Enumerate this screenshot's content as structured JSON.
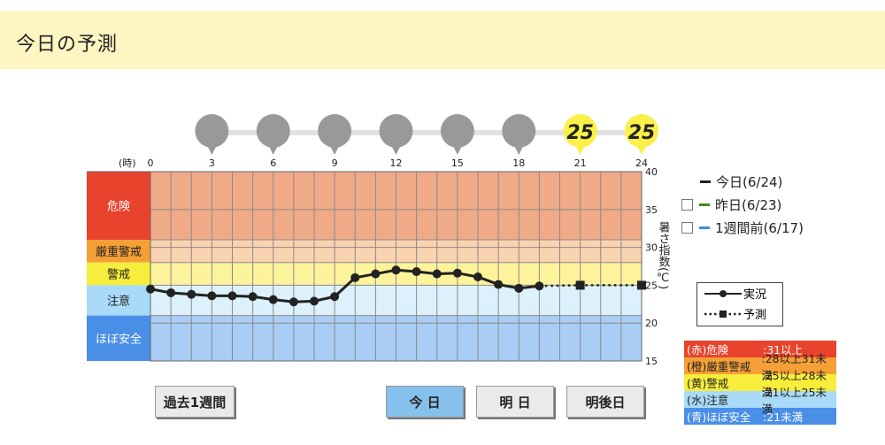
{
  "page": {
    "title": "今日の予測"
  },
  "chart_data": {
    "type": "line",
    "hour_unit": "(時)",
    "x_ticks": [
      0,
      3,
      6,
      9,
      12,
      15,
      18,
      21,
      24
    ],
    "xlim": [
      0,
      24
    ],
    "ylim": [
      15,
      40
    ],
    "y_ticks": [
      15,
      20,
      25,
      30,
      35,
      40
    ],
    "ylabel": "暑さ指数(℃)",
    "series": [
      {
        "name": "実況",
        "style": "solid",
        "color": "#222222",
        "x": [
          0,
          1,
          2,
          3,
          4,
          5,
          6,
          7,
          8,
          9,
          10,
          11,
          12,
          13,
          14,
          15,
          16,
          17,
          18,
          19
        ],
        "values": [
          24.5,
          24.0,
          23.8,
          23.6,
          23.6,
          23.5,
          23.1,
          22.8,
          22.9,
          23.5,
          26.0,
          26.5,
          27.0,
          26.8,
          26.5,
          26.6,
          26.1,
          25.1,
          24.6,
          24.9
        ]
      },
      {
        "name": "予測",
        "style": "dotted",
        "color": "#222222",
        "x": [
          19,
          21,
          24
        ],
        "values": [
          24.9,
          25,
          25
        ]
      }
    ],
    "forecast_markers": [
      {
        "hour": 3,
        "value": null
      },
      {
        "hour": 6,
        "value": null
      },
      {
        "hour": 9,
        "value": null
      },
      {
        "hour": 12,
        "value": null
      },
      {
        "hour": 15,
        "value": null
      },
      {
        "hour": 18,
        "value": null
      },
      {
        "hour": 21,
        "value": "25"
      },
      {
        "hour": 24,
        "value": "25"
      }
    ],
    "bands": [
      {
        "label": "危険",
        "from": 31,
        "to": 40,
        "color": "#f0aa88",
        "label_bg": "#e8432c",
        "label_color": "#ffffff"
      },
      {
        "label": "厳重警戒",
        "from": 28,
        "to": 31,
        "color": "#fad3b0",
        "label_bg": "#f5a037",
        "label_color": "#222222"
      },
      {
        "label": "警戒",
        "from": 25,
        "to": 28,
        "color": "#fdf39a",
        "label_bg": "#f7ed3c",
        "label_color": "#222222"
      },
      {
        "label": "注意",
        "from": 21,
        "to": 25,
        "color": "#dcf1fb",
        "label_bg": "#a9daf7",
        "label_color": "#222222"
      },
      {
        "label": "ほぼ安全",
        "from": 15,
        "to": 21,
        "color": "#aacdf5",
        "label_bg": "#4a8fe7",
        "label_color": "#ffffff"
      }
    ]
  },
  "legend": {
    "today": "今日(6/24)",
    "yesterday": "昨日(6/23)",
    "week_ago": "1週間前(6/17)",
    "colors": {
      "today": "#222222",
      "yesterday": "#3e8a1e",
      "week_ago": "#3d8fe0"
    }
  },
  "line_legend": {
    "actual": "実況",
    "forecast": "予測"
  },
  "scale_legend": [
    {
      "name": "(赤)危険",
      "range": ":31以上",
      "bg": "#e8432c",
      "color": "#ffffff"
    },
    {
      "name": "(橙)厳重警戒",
      "range": ":28以上31未満",
      "bg": "#f5a037",
      "color": "#222222"
    },
    {
      "name": "(黄)警戒",
      "range": ":25以上28未満",
      "bg": "#f7ed3c",
      "color": "#222222"
    },
    {
      "name": "(水)注意",
      "range": ":21以上25未満",
      "bg": "#a9daf7",
      "color": "#222222"
    },
    {
      "name": "(青)ほぼ安全",
      "range": ":21未満",
      "bg": "#4a8fe7",
      "color": "#ffffff"
    }
  ],
  "buttons": {
    "past_week": "過去1週間",
    "today": "今 日",
    "tomorrow": "明 日",
    "day_after": "明後日"
  }
}
